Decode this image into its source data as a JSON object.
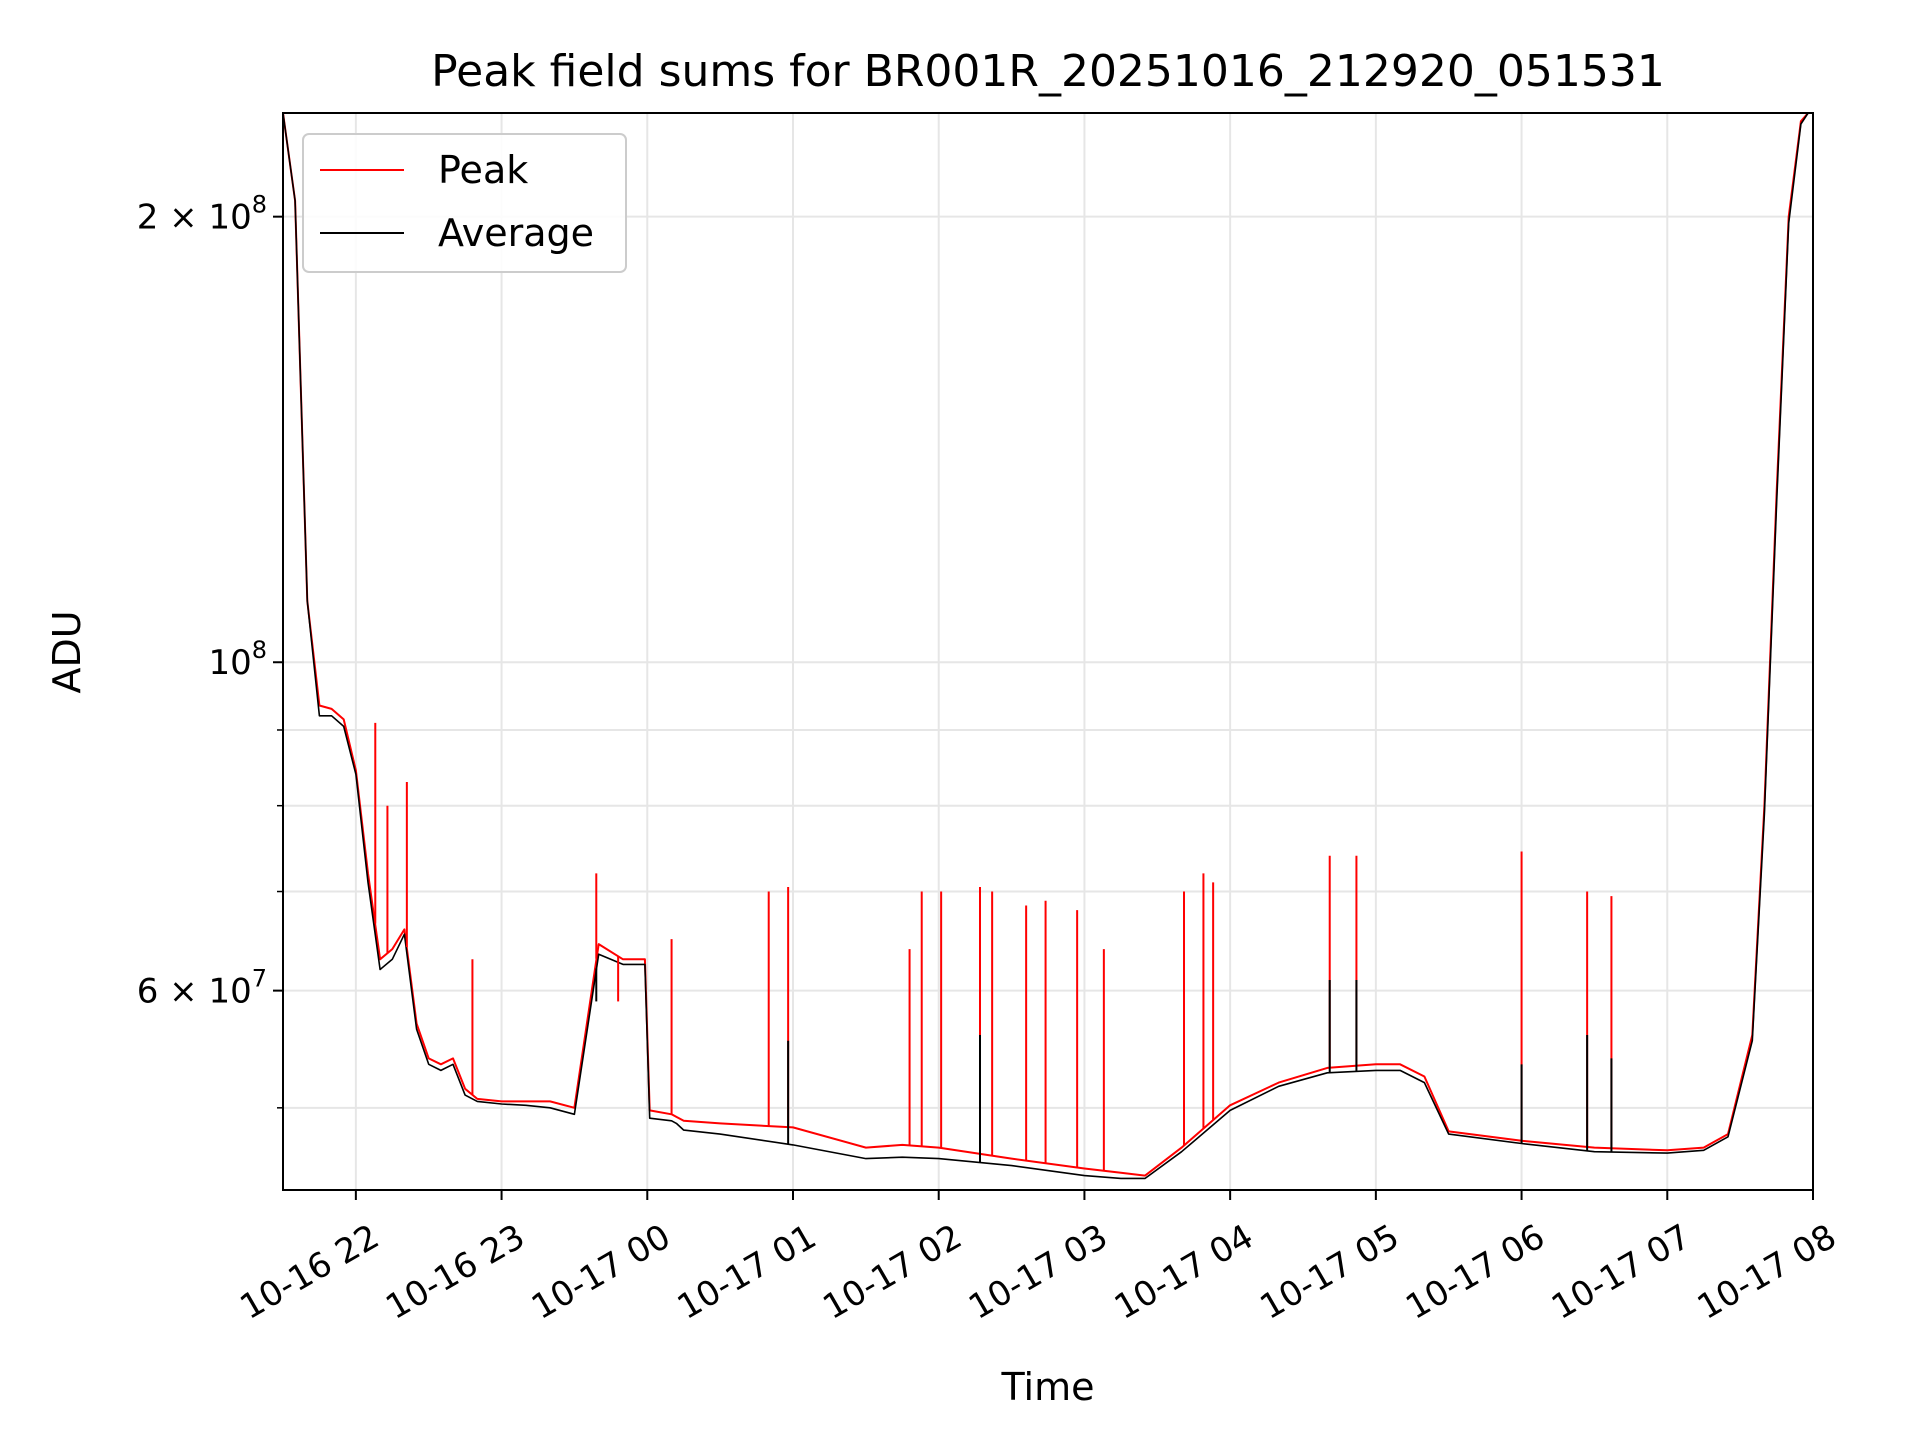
{
  "chart_data": {
    "type": "line",
    "title": "Peak field sums for BR001R_20251016_212920_051531",
    "xlabel": "Time",
    "ylabel": "ADU",
    "yscale": "log",
    "ylim": [
      44000000,
      235000000
    ],
    "xlim": [
      "2025-10-16 21:30",
      "2025-10-17 08:00"
    ],
    "grid": true,
    "legend": "upper left",
    "x_tick_labels": [
      "10-16 22",
      "10-16 23",
      "10-17 00",
      "10-17 01",
      "10-17 02",
      "10-17 03",
      "10-17 04",
      "10-17 05",
      "10-17 06",
      "10-17 07",
      "10-17 08"
    ],
    "y_tick_labels": [
      {
        "value": 200000000,
        "mantissa": "2",
        "exponent": "8"
      },
      {
        "value": 100000000,
        "mantissa": "",
        "exponent": "8"
      },
      {
        "value": 60000000,
        "mantissa": "6",
        "exponent": "7"
      }
    ],
    "y_minor_ticks": [
      50000000,
      70000000,
      80000000,
      90000000
    ],
    "series": [
      {
        "name": "Peak",
        "color": "#ff0000",
        "x": [
          "2025-10-16 21:30",
          "2025-10-16 21:35",
          "2025-10-16 21:40",
          "2025-10-16 21:45",
          "2025-10-16 21:50",
          "2025-10-16 21:55",
          "2025-10-16 22:00",
          "2025-10-16 22:05",
          "2025-10-16 22:10",
          "2025-10-16 22:15",
          "2025-10-16 22:20",
          "2025-10-16 22:25",
          "2025-10-16 22:30",
          "2025-10-16 22:35",
          "2025-10-16 22:40",
          "2025-10-16 22:45",
          "2025-10-16 22:50",
          "2025-10-16 23:00",
          "2025-10-16 23:10",
          "2025-10-16 23:20",
          "2025-10-16 23:30",
          "2025-10-16 23:40",
          "2025-10-16 23:50",
          "2025-10-16 23:59",
          "2025-10-17 00:01",
          "2025-10-17 00:10",
          "2025-10-17 00:12",
          "2025-10-17 00:15",
          "2025-10-17 00:30",
          "2025-10-17 01:00",
          "2025-10-17 01:30",
          "2025-10-17 01:45",
          "2025-10-17 02:00",
          "2025-10-17 02:30",
          "2025-10-17 03:00",
          "2025-10-17 03:15",
          "2025-10-17 03:25",
          "2025-10-17 03:40",
          "2025-10-17 04:00",
          "2025-10-17 04:20",
          "2025-10-17 04:40",
          "2025-10-17 05:00",
          "2025-10-17 05:10",
          "2025-10-17 05:20",
          "2025-10-17 05:30",
          "2025-10-17 06:00",
          "2025-10-17 06:30",
          "2025-10-17 07:00",
          "2025-10-17 07:15",
          "2025-10-17 07:25",
          "2025-10-17 07:35",
          "2025-10-17 07:40",
          "2025-10-17 07:45",
          "2025-10-17 07:50",
          "2025-10-17 07:55",
          "2025-10-17 07:58"
        ],
        "y": [
          235000000,
          205000000,
          110000000,
          93500000,
          93000000,
          91500000,
          84500000,
          72000000,
          63000000,
          64000000,
          66000000,
          57000000,
          54000000,
          53500000,
          54000000,
          51500000,
          50700000,
          50500000,
          50500000,
          50500000,
          50000000,
          64500000,
          63000000,
          63000000,
          49800000,
          49500000,
          49300000,
          49000000,
          48800000,
          48500000,
          47000000,
          47200000,
          47000000,
          46200000,
          45500000,
          45200000,
          45000000,
          47000000,
          50200000,
          52000000,
          53200000,
          53500000,
          53500000,
          52500000,
          48200000,
          47500000,
          47000000,
          46800000,
          47000000,
          48000000,
          56000000,
          80000000,
          130000000,
          200000000,
          232000000,
          235000000
        ]
      },
      {
        "name": "Average",
        "color": "#000000",
        "x": [
          "2025-10-16 21:30",
          "2025-10-16 21:35",
          "2025-10-16 21:40",
          "2025-10-16 21:45",
          "2025-10-16 21:50",
          "2025-10-16 21:55",
          "2025-10-16 22:00",
          "2025-10-16 22:05",
          "2025-10-16 22:10",
          "2025-10-16 22:15",
          "2025-10-16 22:20",
          "2025-10-16 22:25",
          "2025-10-16 22:30",
          "2025-10-16 22:35",
          "2025-10-16 22:40",
          "2025-10-16 22:45",
          "2025-10-16 22:50",
          "2025-10-16 23:00",
          "2025-10-16 23:10",
          "2025-10-16 23:20",
          "2025-10-16 23:30",
          "2025-10-16 23:40",
          "2025-10-16 23:50",
          "2025-10-16 23:59",
          "2025-10-17 00:01",
          "2025-10-17 00:10",
          "2025-10-17 00:12",
          "2025-10-17 00:15",
          "2025-10-17 00:30",
          "2025-10-17 01:00",
          "2025-10-17 01:30",
          "2025-10-17 01:45",
          "2025-10-17 02:00",
          "2025-10-17 02:30",
          "2025-10-17 03:00",
          "2025-10-17 03:15",
          "2025-10-17 03:25",
          "2025-10-17 03:40",
          "2025-10-17 04:00",
          "2025-10-17 04:20",
          "2025-10-17 04:40",
          "2025-10-17 05:00",
          "2025-10-17 05:10",
          "2025-10-17 05:20",
          "2025-10-17 05:30",
          "2025-10-17 06:00",
          "2025-10-17 06:30",
          "2025-10-17 07:00",
          "2025-10-17 07:15",
          "2025-10-17 07:25",
          "2025-10-17 07:35",
          "2025-10-17 07:40",
          "2025-10-17 07:45",
          "2025-10-17 07:50",
          "2025-10-17 07:55",
          "2025-10-17 07:58"
        ],
        "y": [
          235000000,
          205000000,
          110000000,
          92000000,
          92000000,
          90500000,
          84000000,
          71000000,
          62000000,
          63000000,
          65500000,
          56500000,
          53500000,
          53000000,
          53500000,
          51000000,
          50500000,
          50300000,
          50200000,
          50000000,
          49500000,
          63500000,
          62500000,
          62500000,
          49200000,
          49000000,
          48800000,
          48300000,
          48000000,
          47200000,
          46200000,
          46300000,
          46200000,
          45700000,
          45000000,
          44800000,
          44800000,
          46700000,
          49800000,
          51700000,
          52800000,
          53000000,
          53000000,
          52000000,
          48000000,
          47300000,
          46700000,
          46600000,
          46800000,
          47800000,
          55500000,
          79000000,
          128000000,
          198000000,
          231000000,
          235000000
        ]
      }
    ],
    "peak_spikes": [
      {
        "x": "2025-10-16 22:08",
        "y": 91000000
      },
      {
        "x": "2025-10-16 22:13",
        "y": 80000000
      },
      {
        "x": "2025-10-16 22:21",
        "y": 83000000
      },
      {
        "x": "2025-10-16 22:48",
        "y": 63000000
      },
      {
        "x": "2025-10-16 23:39",
        "y": 72000000
      },
      {
        "x": "2025-10-16 23:48",
        "y": 59000000
      },
      {
        "x": "2025-10-17 00:10",
        "y": 65000000
      },
      {
        "x": "2025-10-17 00:50",
        "y": 70000000
      },
      {
        "x": "2025-10-17 00:58",
        "y": 70500000
      },
      {
        "x": "2025-10-17 01:48",
        "y": 64000000
      },
      {
        "x": "2025-10-17 01:53",
        "y": 70000000
      },
      {
        "x": "2025-10-17 02:01",
        "y": 70000000
      },
      {
        "x": "2025-10-17 02:17",
        "y": 70500000
      },
      {
        "x": "2025-10-17 02:22",
        "y": 70000000
      },
      {
        "x": "2025-10-17 02:36",
        "y": 68500000
      },
      {
        "x": "2025-10-17 02:44",
        "y": 69000000
      },
      {
        "x": "2025-10-17 02:57",
        "y": 68000000
      },
      {
        "x": "2025-10-17 03:08",
        "y": 64000000
      },
      {
        "x": "2025-10-17 03:41",
        "y": 70000000
      },
      {
        "x": "2025-10-17 03:49",
        "y": 72000000
      },
      {
        "x": "2025-10-17 03:53",
        "y": 71000000
      },
      {
        "x": "2025-10-17 04:41",
        "y": 74000000
      },
      {
        "x": "2025-10-17 04:52",
        "y": 74000000
      },
      {
        "x": "2025-10-17 06:00",
        "y": 74500000
      },
      {
        "x": "2025-10-17 06:27",
        "y": 70000000
      },
      {
        "x": "2025-10-17 06:37",
        "y": 69500000
      }
    ],
    "average_spikes": [
      {
        "x": "2025-10-16 23:39",
        "y": 59000000
      },
      {
        "x": "2025-10-17 00:58",
        "y": 55500000
      },
      {
        "x": "2025-10-17 02:17",
        "y": 56000000
      },
      {
        "x": "2025-10-17 04:41",
        "y": 61000000
      },
      {
        "x": "2025-10-17 04:52",
        "y": 61000000
      },
      {
        "x": "2025-10-17 06:00",
        "y": 53500000
      },
      {
        "x": "2025-10-17 06:27",
        "y": 56000000
      },
      {
        "x": "2025-10-17 06:37",
        "y": 54000000
      }
    ]
  },
  "colors": {
    "grid": "#e6e6e6",
    "axes": "#000000",
    "background": "#ffffff"
  }
}
